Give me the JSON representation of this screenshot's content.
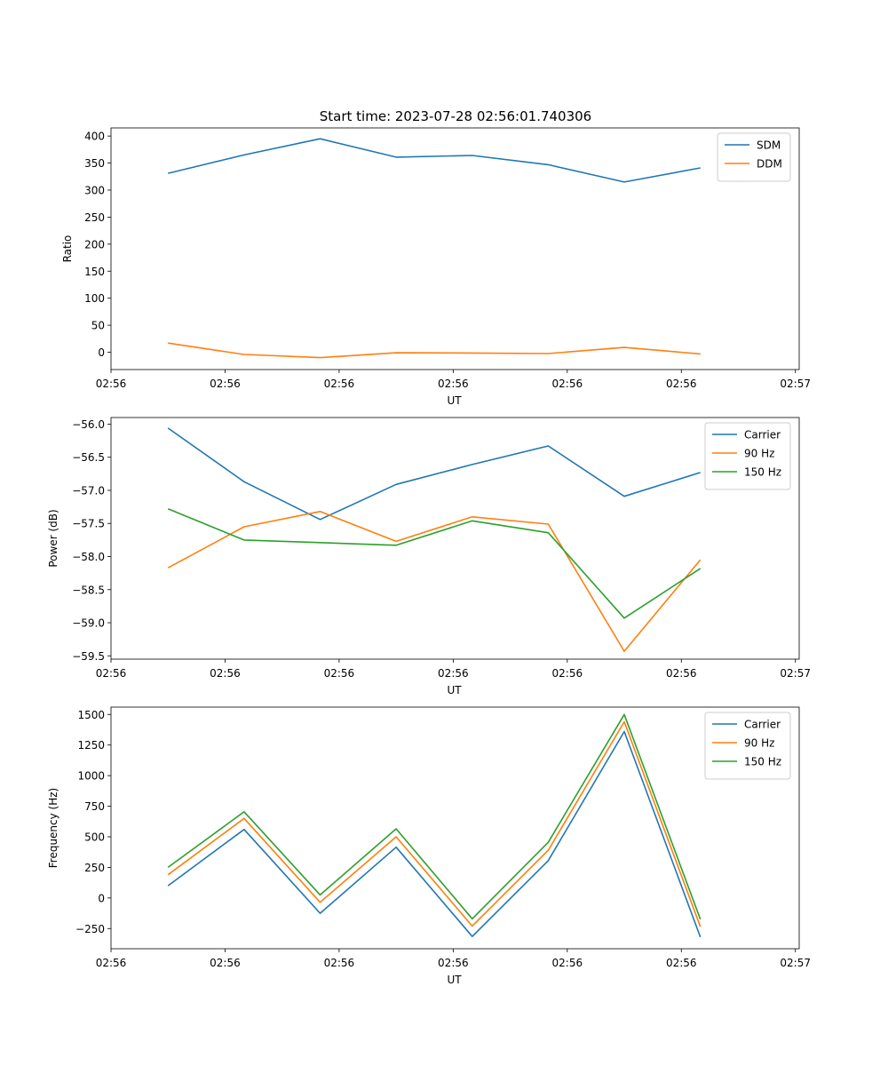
{
  "figure": {
    "title": "Start time: 2023-07-28 02:56:01.740306"
  },
  "chart_data": [
    {
      "type": "line",
      "title": "Start time: 2023-07-28 02:56:01.740306",
      "xlabel": "UT",
      "ylabel": "Ratio",
      "xlim": [
        -0.75,
        8.3
      ],
      "ylim": [
        -32,
        415
      ],
      "x": [
        0,
        1,
        2,
        3,
        4,
        5,
        6,
        7
      ],
      "x_ticks": [
        -0.75,
        0.75,
        2.25,
        3.75,
        5.25,
        6.75,
        8.25
      ],
      "x_tick_labels": [
        "02:56",
        "02:56",
        "02:56",
        "02:56",
        "02:56",
        "02:56",
        "02:57"
      ],
      "y_ticks": [
        0,
        50,
        100,
        150,
        200,
        250,
        300,
        350,
        400
      ],
      "y_tick_labels": [
        "0",
        "50",
        "100",
        "150",
        "200",
        "250",
        "300",
        "350",
        "400"
      ],
      "legend_position": "top-right",
      "series": [
        {
          "name": "SDM",
          "color": "#1f77b4",
          "values": [
            331,
            365,
            395,
            361,
            364,
            347,
            315,
            341
          ]
        },
        {
          "name": "DDM",
          "color": "#ff7f0e",
          "values": [
            17,
            -4,
            -10,
            -1,
            -1.5,
            -2.5,
            9,
            -3
          ]
        }
      ]
    },
    {
      "type": "line",
      "title": "",
      "xlabel": "UT",
      "ylabel": "Power (dB)",
      "xlim": [
        -0.75,
        8.3
      ],
      "ylim": [
        -59.55,
        -55.9
      ],
      "x": [
        0,
        1,
        2,
        3,
        4,
        5,
        6,
        7
      ],
      "x_ticks": [
        -0.75,
        0.75,
        2.25,
        3.75,
        5.25,
        6.75,
        8.25
      ],
      "x_tick_labels": [
        "02:56",
        "02:56",
        "02:56",
        "02:56",
        "02:56",
        "02:56",
        "02:57"
      ],
      "y_ticks": [
        -56.0,
        -56.5,
        -57.0,
        -57.5,
        -58.0,
        -58.5,
        -59.0,
        -59.5
      ],
      "y_tick_labels": [
        "−56.0",
        "−56.5",
        "−57.0",
        "−57.5",
        "−58.0",
        "−58.5",
        "−59.0",
        "−59.5"
      ],
      "legend_position": "top-right",
      "series": [
        {
          "name": "Carrier",
          "color": "#1f77b4",
          "values": [
            -56.06,
            -56.87,
            -57.44,
            -56.91,
            -56.61,
            -56.33,
            -57.09,
            -56.73
          ]
        },
        {
          "name": "90 Hz",
          "color": "#ff7f0e",
          "values": [
            -58.17,
            -57.55,
            -57.32,
            -57.77,
            -57.4,
            -57.51,
            -59.43,
            -58.05
          ]
        },
        {
          "name": "150 Hz",
          "color": "#2ca02c",
          "values": [
            -57.28,
            -57.75,
            -57.79,
            -57.83,
            -57.46,
            -57.64,
            -58.93,
            -58.18
          ]
        }
      ]
    },
    {
      "type": "line",
      "title": "",
      "xlabel": "UT",
      "ylabel": "Frequency (Hz)",
      "xlim": [
        -0.75,
        8.3
      ],
      "ylim": [
        -415,
        1560
      ],
      "x": [
        0,
        1,
        2,
        3,
        4,
        5,
        6,
        7
      ],
      "x_ticks": [
        -0.75,
        0.75,
        2.25,
        3.75,
        5.25,
        6.75,
        8.25
      ],
      "x_tick_labels": [
        "02:56",
        "02:56",
        "02:56",
        "02:56",
        "02:56",
        "02:56",
        "02:57"
      ],
      "y_ticks": [
        -250,
        0,
        250,
        500,
        750,
        1000,
        1250,
        1500
      ],
      "y_tick_labels": [
        "−250",
        "0",
        "250",
        "500",
        "750",
        "1000",
        "1250",
        "1500"
      ],
      "legend_position": "top-right",
      "series": [
        {
          "name": "Carrier",
          "color": "#1f77b4",
          "values": [
            100,
            560,
            -125,
            415,
            -315,
            305,
            1360,
            -320
          ]
        },
        {
          "name": "90 Hz",
          "color": "#ff7f0e",
          "values": [
            190,
            650,
            -35,
            500,
            -230,
            390,
            1440,
            -235
          ]
        },
        {
          "name": "150 Hz",
          "color": "#2ca02c",
          "values": [
            250,
            705,
            25,
            565,
            -170,
            455,
            1500,
            -175
          ]
        }
      ]
    }
  ]
}
